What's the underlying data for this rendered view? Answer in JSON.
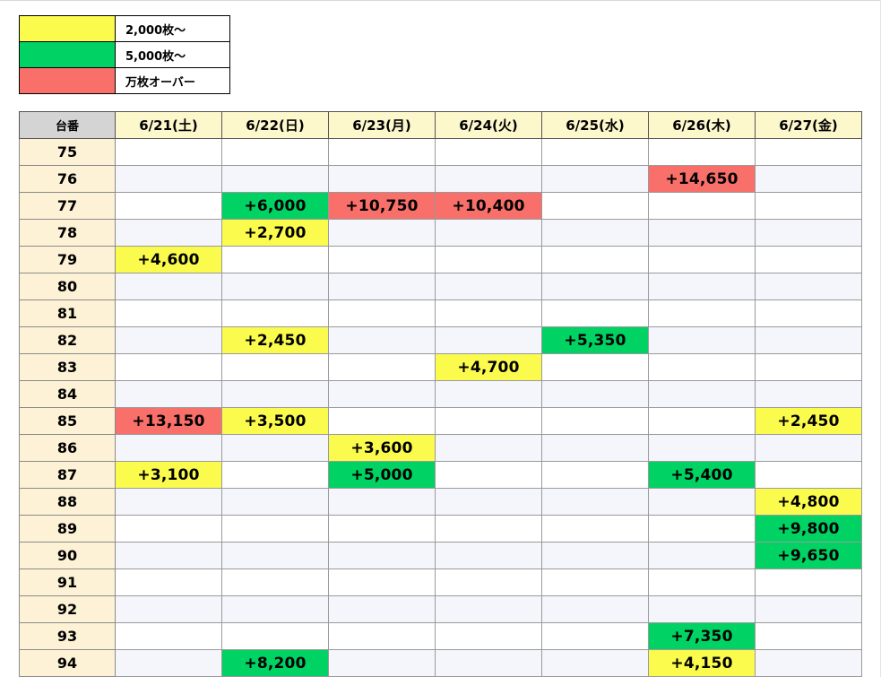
{
  "legend": [
    {
      "label": "2,000枚～",
      "color": "#fbfb4e"
    },
    {
      "label": "5,000枚～",
      "color": "#00d363"
    },
    {
      "label": "万枚オーバー",
      "color": "#f96f6a"
    }
  ],
  "table": {
    "corner_label": "台番",
    "dates": [
      "6/21(土)",
      "6/22(日)",
      "6/23(月)",
      "6/24(火)",
      "6/25(水)",
      "6/26(木)",
      "6/27(金)"
    ],
    "rows": [
      {
        "machine": "75",
        "cells": [
          "",
          "",
          "",
          "",
          "",
          "",
          ""
        ]
      },
      {
        "machine": "76",
        "cells": [
          "",
          "",
          "",
          "",
          "",
          "+14,650",
          ""
        ]
      },
      {
        "machine": "77",
        "cells": [
          "",
          "+6,000",
          "+10,750",
          "+10,400",
          "",
          "",
          ""
        ]
      },
      {
        "machine": "78",
        "cells": [
          "",
          "+2,700",
          "",
          "",
          "",
          "",
          ""
        ]
      },
      {
        "machine": "79",
        "cells": [
          "+4,600",
          "",
          "",
          "",
          "",
          "",
          ""
        ]
      },
      {
        "machine": "80",
        "cells": [
          "",
          "",
          "",
          "",
          "",
          "",
          ""
        ]
      },
      {
        "machine": "81",
        "cells": [
          "",
          "",
          "",
          "",
          "",
          "",
          ""
        ]
      },
      {
        "machine": "82",
        "cells": [
          "",
          "+2,450",
          "",
          "",
          "+5,350",
          "",
          ""
        ]
      },
      {
        "machine": "83",
        "cells": [
          "",
          "",
          "",
          "+4,700",
          "",
          "",
          ""
        ]
      },
      {
        "machine": "84",
        "cells": [
          "",
          "",
          "",
          "",
          "",
          "",
          ""
        ]
      },
      {
        "machine": "85",
        "cells": [
          "+13,150",
          "+3,500",
          "",
          "",
          "",
          "",
          "+2,450"
        ]
      },
      {
        "machine": "86",
        "cells": [
          "",
          "",
          "+3,600",
          "",
          "",
          "",
          ""
        ]
      },
      {
        "machine": "87",
        "cells": [
          "+3,100",
          "",
          "+5,000",
          "",
          "",
          "+5,400",
          ""
        ]
      },
      {
        "machine": "88",
        "cells": [
          "",
          "",
          "",
          "",
          "",
          "",
          "+4,800"
        ]
      },
      {
        "machine": "89",
        "cells": [
          "",
          "",
          "",
          "",
          "",
          "",
          "+9,800"
        ]
      },
      {
        "machine": "90",
        "cells": [
          "",
          "",
          "",
          "",
          "",
          "",
          "+9,650"
        ]
      },
      {
        "machine": "91",
        "cells": [
          "",
          "",
          "",
          "",
          "",
          "",
          ""
        ]
      },
      {
        "machine": "92",
        "cells": [
          "",
          "",
          "",
          "",
          "",
          "",
          ""
        ]
      },
      {
        "machine": "93",
        "cells": [
          "",
          "",
          "",
          "",
          "",
          "+7,350",
          ""
        ]
      },
      {
        "machine": "94",
        "cells": [
          "",
          "+8,200",
          "",
          "",
          "",
          "+4,150",
          ""
        ]
      }
    ]
  }
}
